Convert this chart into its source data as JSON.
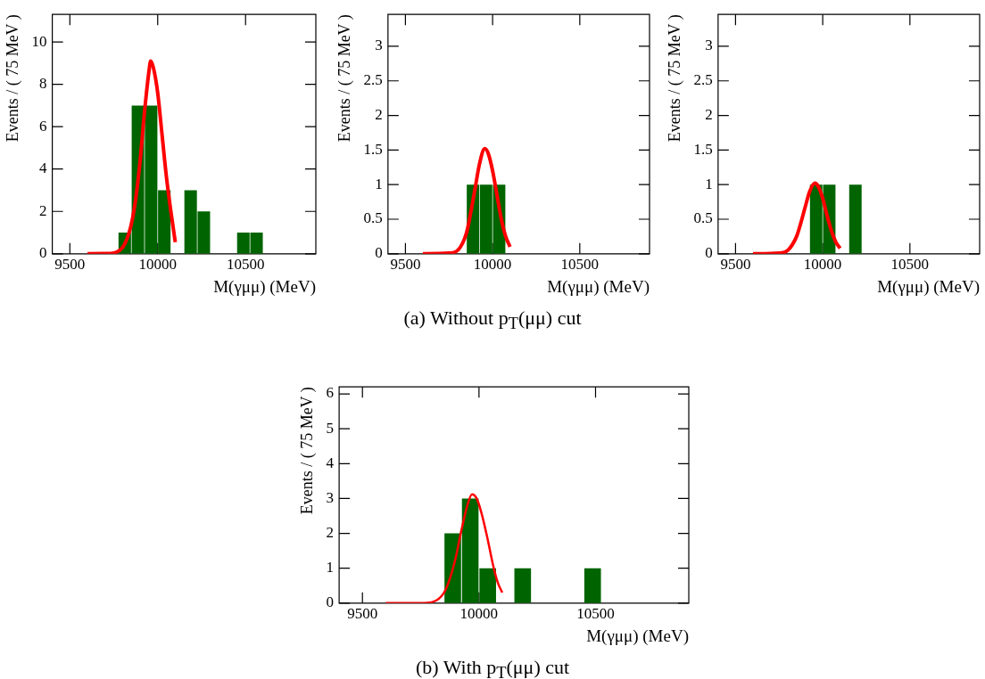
{
  "chart_data": [
    {
      "type": "histogram",
      "xlabel": "M(γμμ) (MeV)",
      "ylabel": "Events / ( 75 MeV )",
      "xlim": [
        9400,
        10900
      ],
      "xticks": [
        9500,
        10000,
        10500
      ],
      "ylim": [
        0,
        11.3
      ],
      "yticks": [
        0,
        2,
        4,
        6,
        8,
        10
      ],
      "grid": false,
      "series": [
        {
          "color": "#006400",
          "bins": [
            9400,
            9475,
            9550,
            9625,
            9700,
            9775,
            9850,
            9925,
            10000,
            10075,
            10150,
            10225,
            10300,
            10375,
            10450,
            10525,
            10600,
            10675,
            10750,
            10825,
            10900
          ],
          "values": [
            0,
            0,
            0,
            0,
            0,
            1,
            7,
            7,
            3,
            0,
            3,
            2,
            0,
            0,
            1,
            1,
            0,
            0,
            0,
            0
          ]
        },
        {
          "type": "line",
          "color": "#ff0000",
          "x": [
            9600,
            9700,
            9750,
            9800,
            9825,
            9850,
            9875,
            9900,
            9925,
            9950,
            9960,
            9975,
            10000,
            10025,
            10050,
            10075,
            10100
          ],
          "values": [
            0,
            0.01,
            0.04,
            0.3,
            0.7,
            1.4,
            2.6,
            4.4,
            6.7,
            8.6,
            9.1,
            8.8,
            7.6,
            5.6,
            3.6,
            2.0,
            0.55
          ]
        }
      ]
    },
    {
      "type": "histogram",
      "xlabel": "M(γμμ) (MeV)",
      "ylabel": "Events / ( 75 MeV )",
      "xlim": [
        9400,
        10900
      ],
      "xticks": [
        9500,
        10000,
        10500
      ],
      "ylim": [
        0,
        3.46
      ],
      "yticks": [
        0,
        0.5,
        1,
        1.5,
        2,
        2.5,
        3
      ],
      "grid": false,
      "annotations": [
        "(a) Without p$_{T}$(μμ) cut"
      ],
      "series": [
        {
          "color": "#006400",
          "bins": [
            9400,
            9475,
            9550,
            9625,
            9700,
            9775,
            9850,
            9925,
            10000,
            10075,
            10150,
            10225,
            10300,
            10375,
            10450,
            10525,
            10600,
            10675,
            10750,
            10825,
            10900
          ],
          "values": [
            0,
            0,
            0,
            0,
            0,
            0,
            1,
            1,
            1,
            0,
            0,
            0,
            0,
            0,
            0,
            0,
            0,
            0,
            0,
            0
          ]
        },
        {
          "type": "line",
          "color": "#ff0000",
          "x": [
            9600,
            9750,
            9800,
            9850,
            9875,
            9900,
            9925,
            9955,
            9975,
            10000,
            10025,
            10050,
            10075,
            10100
          ],
          "values": [
            0,
            0.01,
            0.05,
            0.3,
            0.6,
            0.95,
            1.3,
            1.52,
            1.45,
            1.2,
            0.85,
            0.5,
            0.25,
            0.1
          ]
        }
      ]
    },
    {
      "type": "histogram",
      "xlabel": "M(γμμ) (MeV)",
      "ylabel": "Events / ( 75 MeV )",
      "xlim": [
        9400,
        10900
      ],
      "xticks": [
        9500,
        10000,
        10500
      ],
      "ylim": [
        0,
        3.46
      ],
      "yticks": [
        0,
        0.5,
        1,
        1.5,
        2,
        2.5,
        3
      ],
      "grid": false,
      "series": [
        {
          "color": "#006400",
          "bins": [
            9400,
            9475,
            9550,
            9625,
            9700,
            9775,
            9850,
            9925,
            10000,
            10075,
            10150,
            10225,
            10300,
            10375,
            10450,
            10525,
            10600,
            10675,
            10750,
            10825,
            10900
          ],
          "values": [
            0,
            0,
            0,
            0,
            0,
            0,
            0,
            1,
            1,
            0,
            1,
            0,
            0,
            0,
            0,
            0,
            0,
            0,
            0,
            0
          ]
        },
        {
          "type": "line",
          "color": "#ff0000",
          "x": [
            9600,
            9750,
            9800,
            9850,
            9875,
            9900,
            9925,
            9955,
            9975,
            10000,
            10025,
            10050,
            10075,
            10100
          ],
          "values": [
            0,
            0.01,
            0.05,
            0.25,
            0.45,
            0.68,
            0.9,
            1.02,
            0.97,
            0.8,
            0.55,
            0.33,
            0.17,
            0.08
          ]
        }
      ]
    },
    {
      "type": "histogram",
      "xlabel": "M(γμμ) (MeV)",
      "ylabel": "Events / ( 75 MeV )",
      "xlim": [
        9400,
        10900
      ],
      "xticks": [
        9500,
        10000,
        10500
      ],
      "ylim": [
        0,
        6.2
      ],
      "yticks": [
        0,
        1,
        2,
        3,
        4,
        5,
        6
      ],
      "grid": false,
      "annotations": [
        "(b) With p$_{T}$(μμ) cut"
      ],
      "series": [
        {
          "color": "#006400",
          "bins": [
            9400,
            9475,
            9550,
            9625,
            9700,
            9775,
            9850,
            9925,
            10000,
            10075,
            10150,
            10225,
            10300,
            10375,
            10450,
            10525,
            10600,
            10675,
            10750,
            10825,
            10900
          ],
          "values": [
            0,
            0,
            0,
            0,
            0,
            0,
            2,
            3,
            1,
            0,
            1,
            0,
            0,
            0,
            1,
            0,
            0,
            0,
            0,
            0
          ]
        },
        {
          "type": "line",
          "color": "#ff0000",
          "x": [
            9600,
            9750,
            9800,
            9850,
            9875,
            9900,
            9925,
            9950,
            9970,
            9990,
            10010,
            10035,
            10060,
            10080,
            10100
          ],
          "values": [
            0,
            0,
            0.03,
            0.3,
            0.7,
            1.3,
            2.1,
            2.8,
            3.12,
            3.0,
            2.6,
            1.9,
            1.1,
            0.6,
            0.3
          ]
        }
      ]
    }
  ]
}
